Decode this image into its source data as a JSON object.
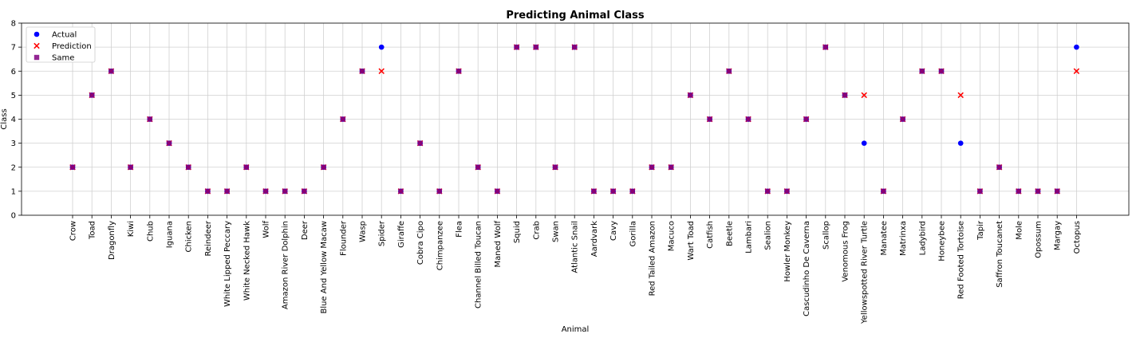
{
  "chart_data": {
    "type": "scatter",
    "title": "Predicting Animal Class",
    "xlabel": "Animal",
    "ylabel": "Class",
    "ylim": [
      0,
      8
    ],
    "yticks": [
      0,
      1,
      2,
      3,
      4,
      5,
      6,
      7,
      8
    ],
    "grid": true,
    "legend_position": "top-left",
    "categories": [
      "Crow",
      "Toad",
      "Dragonfly",
      "Kiwi",
      "Chub",
      "Iguana",
      "Chicken",
      "Reindeer",
      "White Lipped Peccary",
      "White Necked Hawk",
      "Wolf",
      "Amazon River Dolphin",
      "Deer",
      "Blue And Yellow Macaw",
      "Flounder",
      "Wasp",
      "Spider",
      "Giraffe",
      "Cobra Cipo",
      "Chimpanzee",
      "Flea",
      "Channel Billed Toucan",
      "Maned Wolf",
      "Squid",
      "Crab",
      "Swan",
      "Atlantic Snail",
      "Aardvark",
      "Cavy",
      "Gorilla",
      "Red Tailed Amazon",
      "Macuco",
      "Wart Toad",
      "Catfish",
      "Beetle",
      "Lambari",
      "Sealion",
      "Howler Monkey",
      "Cascudinho De Caverna",
      "Scallop",
      "Venomous Frog",
      "Yellowspotted River Turtle",
      "Manatee",
      "Matrinxa",
      "Ladybird",
      "Honeybee",
      "Red Footed Tortoise",
      "Tapir",
      "Saffron Toucanet",
      "Mole",
      "Opossum",
      "Margay",
      "Octopus"
    ],
    "series": [
      {
        "name": "Actual",
        "marker": "circle",
        "color": "#0000ff",
        "values": [
          2,
          5,
          6,
          2,
          4,
          3,
          2,
          1,
          1,
          2,
          1,
          1,
          1,
          2,
          4,
          6,
          7,
          1,
          3,
          1,
          6,
          2,
          1,
          7,
          7,
          2,
          7,
          1,
          1,
          1,
          2,
          2,
          5,
          4,
          6,
          4,
          1,
          1,
          4,
          7,
          5,
          3,
          1,
          4,
          6,
          6,
          3,
          1,
          2,
          1,
          1,
          1,
          7
        ]
      },
      {
        "name": "Prediction",
        "marker": "x",
        "color": "#ff0000",
        "values": [
          2,
          5,
          6,
          2,
          4,
          3,
          2,
          1,
          1,
          2,
          1,
          1,
          1,
          2,
          4,
          6,
          6,
          1,
          3,
          1,
          6,
          2,
          1,
          7,
          7,
          2,
          7,
          1,
          1,
          1,
          2,
          2,
          5,
          4,
          6,
          4,
          1,
          1,
          4,
          7,
          5,
          5,
          1,
          4,
          6,
          6,
          5,
          1,
          2,
          1,
          1,
          1,
          6
        ]
      },
      {
        "name": "Same",
        "marker": "square",
        "color": "#800080",
        "values": [
          2,
          5,
          6,
          2,
          4,
          3,
          2,
          1,
          1,
          2,
          1,
          1,
          1,
          2,
          4,
          6,
          null,
          1,
          3,
          1,
          6,
          2,
          1,
          7,
          7,
          2,
          7,
          1,
          1,
          1,
          2,
          2,
          5,
          4,
          6,
          4,
          1,
          1,
          4,
          7,
          5,
          null,
          1,
          4,
          6,
          6,
          null,
          1,
          2,
          1,
          1,
          1,
          null
        ]
      }
    ]
  }
}
